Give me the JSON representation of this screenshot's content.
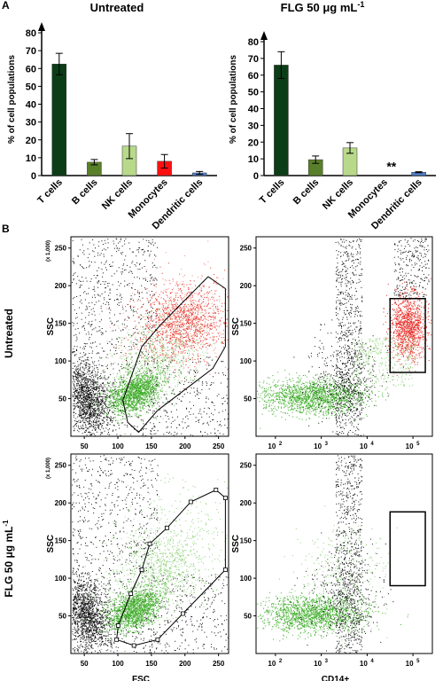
{
  "panel_labels": {
    "a": "A",
    "b": "B"
  },
  "chart_data": [
    {
      "type": "bar",
      "title": "Untreated",
      "ylabel": "% of cell populations",
      "ylim": [
        0,
        80
      ],
      "yticks": [
        0,
        10,
        20,
        30,
        40,
        50,
        60,
        70,
        80
      ],
      "categories": [
        "T cells",
        "B cells",
        "NK cells",
        "Monocytes",
        "Dendritic cells"
      ],
      "values": [
        62.5,
        7.5,
        16.5,
        8,
        1.5
      ],
      "errors": [
        6,
        1.5,
        7,
        3.8,
        0.8
      ],
      "colors": [
        "#0b3d17",
        "#5a7f2a",
        "#b8d98a",
        "#ff1010",
        "#4f7ecb"
      ]
    },
    {
      "type": "bar",
      "title": "FLG 50 μg mL",
      "title_sup": "-1",
      "ylabel": "% of cell populations",
      "ylim": [
        0,
        80
      ],
      "yticks": [
        0,
        10,
        20,
        30,
        40,
        50,
        60,
        70,
        80
      ],
      "categories": [
        "T cells",
        "B cells",
        "NK cells",
        "Monocytes",
        "Dendritic cells"
      ],
      "values": [
        66,
        9.5,
        16.5,
        0,
        2
      ],
      "errors": [
        8,
        2.2,
        3.2,
        0,
        0.3
      ],
      "colors": [
        "#0b3d17",
        "#5a7f2a",
        "#b8d98a",
        "#ff1010",
        "#4f7ecb"
      ],
      "annotation": "**"
    },
    {
      "type": "scatter",
      "xlabel": "",
      "ylabel": "SSC",
      "y_multiplier": "(x 1,000)",
      "xlim": [
        30,
        265
      ],
      "ylim": [
        0,
        265
      ],
      "xticks": [
        "50",
        "100",
        "150",
        "200",
        "250"
      ],
      "yticks": [
        "50",
        "100",
        "150",
        "200",
        "250"
      ],
      "row_label": "Untreated",
      "gate": "polygon"
    },
    {
      "type": "scatter",
      "xlabel": "",
      "ylabel": "SSC",
      "xscale": "log",
      "ylim": [
        0,
        265
      ],
      "xticks": [
        "10",
        "10",
        "10",
        "10"
      ],
      "xtick_exps": [
        "2",
        "3",
        "4",
        "5"
      ],
      "yticks": [
        "50",
        "100",
        "150",
        "200",
        "250"
      ],
      "gate": "rectangle"
    },
    {
      "type": "scatter",
      "xlabel": "FSC",
      "ylabel": "SSC",
      "y_multiplier": "(x 1,000)",
      "xlim": [
        30,
        265
      ],
      "ylim": [
        0,
        265
      ],
      "xticks": [
        "50",
        "100",
        "150",
        "200",
        "250"
      ],
      "yticks": [
        "50",
        "100",
        "150",
        "200",
        "250"
      ],
      "row_label": "FLG 50 μg mL",
      "row_label_sup": "-1",
      "gate": "polygon"
    },
    {
      "type": "scatter",
      "xlabel": "CD14+",
      "ylabel": "SSC",
      "xscale": "log",
      "ylim": [
        0,
        265
      ],
      "xticks": [
        "10",
        "10",
        "10",
        "10"
      ],
      "xtick_exps": [
        "2",
        "3",
        "4",
        "5"
      ],
      "yticks": [
        "50",
        "100",
        "150",
        "200",
        "250"
      ],
      "gate": "rectangle"
    }
  ]
}
